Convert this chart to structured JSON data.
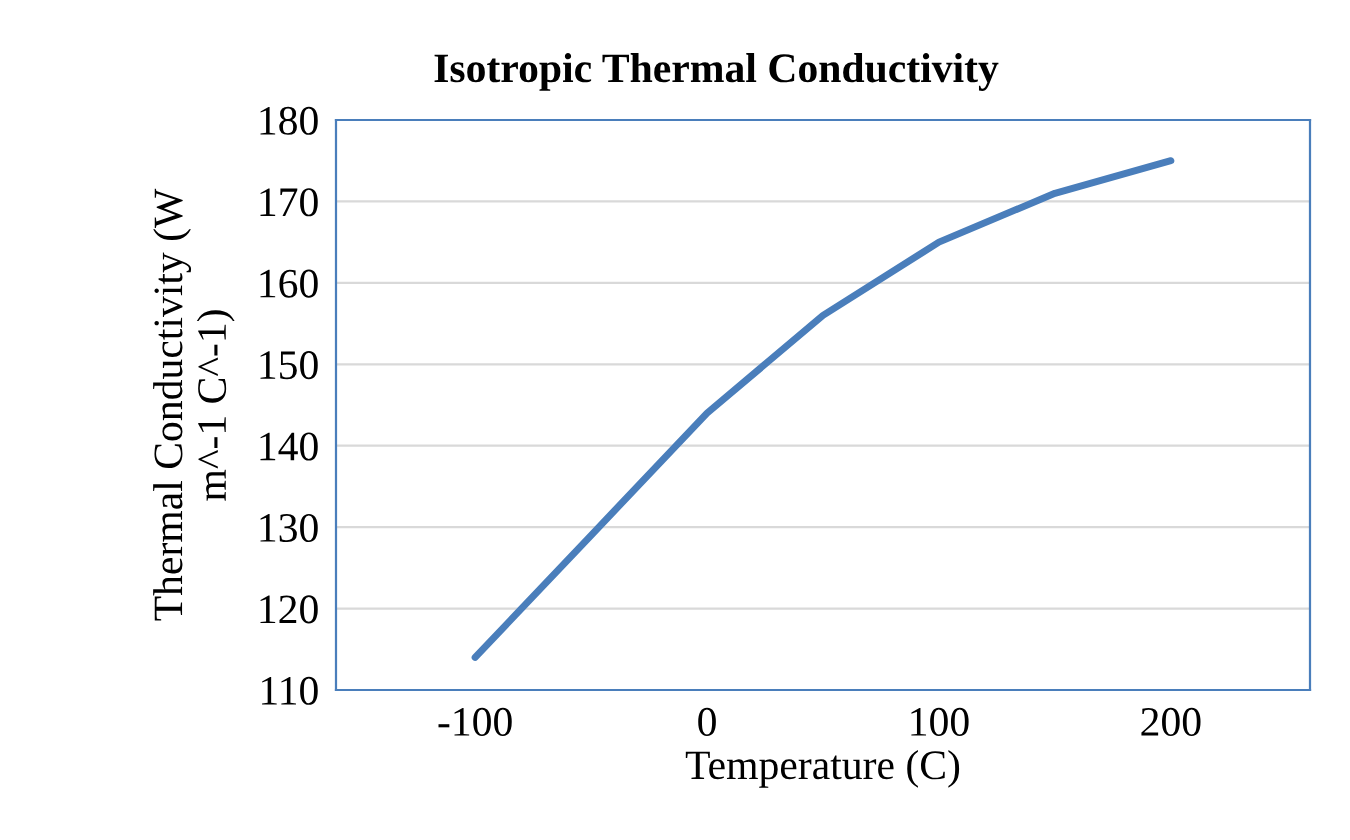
{
  "chart_data": {
    "type": "line",
    "title": "Isotropic Thermal Conductivity",
    "xlabel": "Temperature (C)",
    "ylabel": "Thermal Conductivity (W\nm^-1 C^-1)",
    "series": [
      {
        "color": "#4a7ebb",
        "x": [
          -100,
          -50,
          0,
          50,
          100,
          150,
          200
        ],
        "values": [
          114,
          129,
          144,
          156,
          165,
          171,
          175
        ]
      }
    ],
    "xlim": [
      -160,
      260
    ],
    "xticks": [
      -100,
      0,
      100,
      200
    ],
    "ylim": [
      110,
      180
    ],
    "yticks": [
      110,
      120,
      130,
      140,
      150,
      160,
      170,
      180
    ],
    "grid": "y",
    "legend": false,
    "marker": "none",
    "line_style": "solid"
  }
}
